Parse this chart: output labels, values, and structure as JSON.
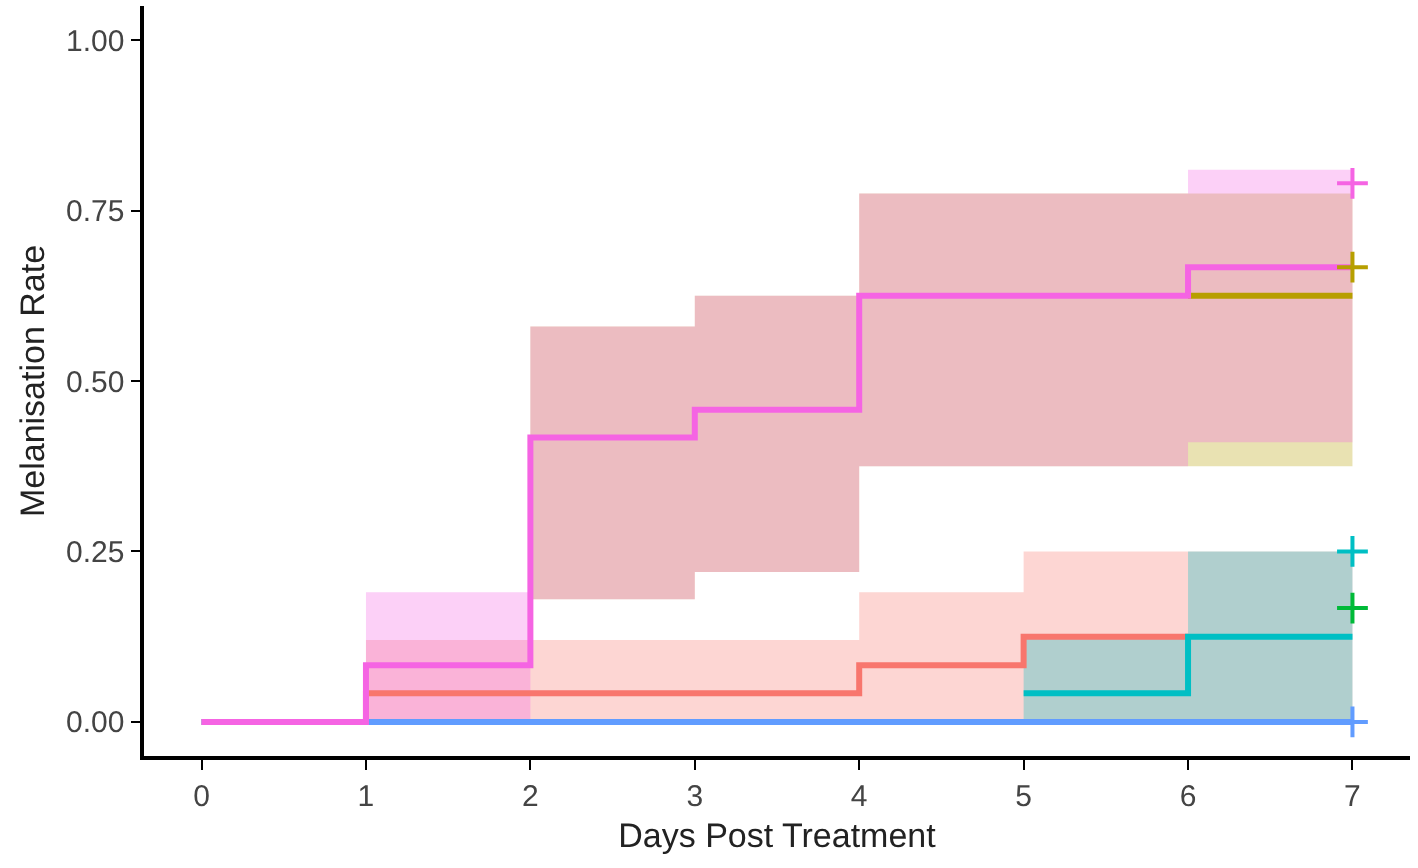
{
  "chart_data": {
    "type": "step",
    "xlabel": "Days Post Treatment",
    "ylabel": "Melanisation Rate",
    "xlim": [
      -0.35,
      7.35
    ],
    "xticks": [
      0,
      1,
      2,
      3,
      4,
      5,
      6,
      7
    ],
    "ylim": [
      -0.05,
      1.05
    ],
    "yticks": [
      {
        "value": 0,
        "label": "0.00"
      },
      {
        "value": 0.25,
        "label": "0.25"
      },
      {
        "value": 0.5,
        "label": "0.50"
      },
      {
        "value": 0.75,
        "label": "0.75"
      },
      {
        "value": 1,
        "label": "1.00"
      }
    ],
    "grid": false,
    "marker": "none",
    "line_style": "solid",
    "series": [
      {
        "color": "#f8766d",
        "x": [
          0,
          1,
          2,
          3,
          4,
          5,
          6,
          7
        ],
        "values": [
          0,
          0.042,
          0.042,
          0.042,
          0.083,
          0.125,
          0.125,
          null
        ],
        "lower": [
          0,
          0,
          0,
          0,
          0,
          0,
          0,
          0
        ],
        "upper": [
          0,
          0.12,
          0.12,
          0.12,
          0.19,
          0.25,
          0.25,
          0.25
        ]
      },
      {
        "color": "#b79f00",
        "x": [
          2,
          3,
          4,
          5,
          6,
          7
        ],
        "values": [
          null,
          null,
          null,
          null,
          0.625,
          0.625
        ],
        "lower": [
          0.18,
          0.22,
          0.375,
          0.375,
          0.375,
          0.375
        ],
        "upper": [
          0.58,
          0.625,
          0.775,
          0.775,
          0.775,
          0.775
        ]
      },
      {
        "color": "#00bfc4",
        "x": [
          5,
          6,
          7
        ],
        "values": [
          0.042,
          0.125,
          0.125
        ],
        "lower": [
          0,
          0,
          0
        ],
        "upper": [
          0.125,
          0.25,
          0.25
        ]
      },
      {
        "color": "#619cff",
        "x": [
          0,
          1,
          2,
          3,
          4,
          5,
          6,
          7
        ],
        "values": [
          0,
          0,
          0,
          0,
          0,
          0,
          0,
          0
        ]
      },
      {
        "color": "#f564e3",
        "x": [
          0,
          1,
          2,
          3,
          4,
          5,
          6,
          7
        ],
        "values": [
          0,
          0.083,
          0.417,
          0.458,
          0.625,
          0.625,
          0.667,
          0.667
        ],
        "lower": [
          0,
          0,
          0.18,
          0.22,
          0.375,
          0.375,
          0.41,
          0.41
        ],
        "upper": [
          0,
          0.19,
          0.58,
          0.625,
          0.775,
          0.775,
          0.81,
          0.81
        ]
      },
      {
        "type": "scatter",
        "marker": "cross",
        "color": "#f564e3",
        "x": [
          7
        ],
        "values": [
          0.79
        ]
      },
      {
        "type": "scatter",
        "marker": "cross",
        "color": "#b79f00",
        "x": [
          7
        ],
        "values": [
          0.667
        ]
      },
      {
        "type": "scatter",
        "marker": "cross",
        "color": "#00bfc4",
        "x": [
          7
        ],
        "values": [
          0.25
        ]
      },
      {
        "type": "scatter",
        "marker": "cross",
        "color": "#00ba38",
        "x": [
          7
        ],
        "values": [
          0.167
        ]
      },
      {
        "type": "scatter",
        "marker": "cross",
        "color": "#619cff",
        "x": [
          7
        ],
        "values": [
          0
        ]
      }
    ]
  }
}
